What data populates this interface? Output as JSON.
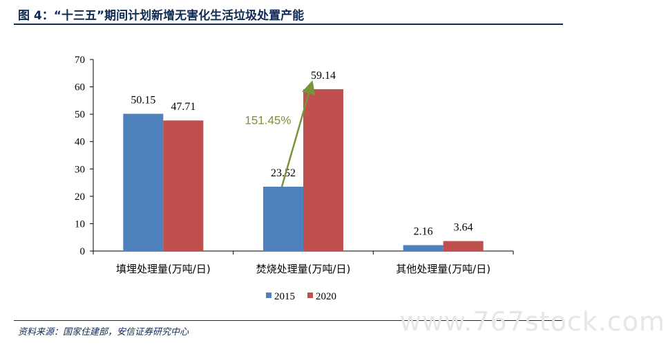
{
  "page": {
    "title": "图 4：“十三五”期间计划新增无害化生活垃圾处置产能",
    "source": "资料来源：国家住建部，安信证券研究中心",
    "watermark": "www.767stock.com"
  },
  "chart_data": {
    "type": "bar",
    "title": "",
    "xlabel": "",
    "ylabel": "",
    "categories": [
      "填埋处理量(万吨/日)",
      "焚烧处理量(万吨/日)",
      "其他处理量(万吨/日)"
    ],
    "series": [
      {
        "name": "2015",
        "values": [
          50.15,
          23.52,
          2.16
        ],
        "color": "#4f81bd"
      },
      {
        "name": "2020",
        "values": [
          47.71,
          59.14,
          3.64
        ],
        "color": "#c0504d"
      }
    ],
    "ylim": [
      0,
      70
    ],
    "yticks": [
      0,
      10,
      20,
      30,
      40,
      50,
      60,
      70
    ],
    "grid": false,
    "legend": "bottom",
    "annotation": {
      "text": "151.45%",
      "color": "#77933c",
      "arrow_from": {
        "category": 1,
        "series": 0,
        "value": 23.52
      },
      "arrow_to": {
        "category": 1,
        "series": 1,
        "value": 59.14
      }
    }
  }
}
